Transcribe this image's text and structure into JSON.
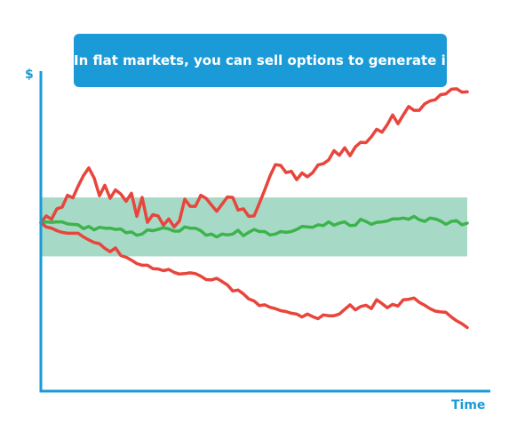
{
  "header": {
    "banner_text": "In flat markets, you can sell options to generate income."
  },
  "colors": {
    "banner": "#1a9bd7",
    "axis": "#1a9bd7",
    "band": "#a7d9c7",
    "up_down": "#e8453c",
    "flat": "#3cb44b"
  },
  "chart_data": {
    "type": "line",
    "title": "",
    "xlabel": "Time",
    "ylabel": "$",
    "xlim": [
      0,
      80
    ],
    "ylim": [
      -40,
      36
    ],
    "grid": false,
    "legend": "none",
    "band": {
      "from": -8,
      "to": 6
    },
    "x": [
      0,
      1,
      2,
      3,
      4,
      5,
      6,
      7,
      8,
      9,
      10,
      11,
      12,
      13,
      14,
      15,
      16,
      17,
      18,
      19,
      20,
      21,
      22,
      23,
      24,
      25,
      26,
      27,
      28,
      29,
      30,
      31,
      32,
      33,
      34,
      35,
      36,
      37,
      38,
      39,
      40,
      41,
      42,
      43,
      44,
      45,
      46,
      47,
      48,
      49,
      50,
      51,
      52,
      53,
      54,
      55,
      56,
      57,
      58,
      59,
      60,
      61,
      62,
      63,
      64,
      65,
      66,
      67,
      68,
      69,
      70,
      71,
      72,
      73,
      74,
      75,
      76,
      77,
      78,
      79,
      80
    ],
    "series": [
      {
        "values": [
          0,
          1.6,
          0.8,
          3.3,
          3.7,
          6.5,
          5.9,
          8.7,
          11.2,
          13.0,
          10.6,
          6.4,
          8.9,
          5.8,
          7.8,
          6.8,
          5.1,
          7.0,
          1.5,
          6.0,
          0.1,
          1.9,
          1.6,
          -0.6,
          0.9,
          -1.0,
          0.4,
          5.6,
          3.9,
          3.9,
          6.5,
          5.8,
          4.2,
          2.7,
          4.4,
          6.1,
          6.0,
          3.0,
          3.3,
          1.5,
          1.6,
          4.6,
          7.8,
          11.1,
          13.8,
          13.6,
          11.9,
          12.2,
          10.2,
          11.8,
          10.9,
          11.9,
          13.7,
          14.0,
          14.9,
          17.1,
          16.0,
          17.8,
          15.9,
          18.0,
          19.1,
          19.0,
          20.4,
          22.2,
          21.5,
          23.3,
          25.6,
          23.5,
          25.6,
          27.6,
          26.7,
          26.7,
          28.2,
          28.9,
          29.2,
          30.4,
          30.6,
          31.7,
          31.8,
          31.0,
          31.1
        ]
      },
      {
        "values": [
          0,
          0.2,
          0.1,
          0.2,
          0.2,
          -0.3,
          -0.4,
          -0.5,
          -1.4,
          -0.9,
          -1.7,
          -1.1,
          -1.3,
          -1.3,
          -1.6,
          -1.5,
          -2.4,
          -2.2,
          -3.0,
          -2.7,
          -1.7,
          -1.9,
          -1.6,
          -1.2,
          -1.5,
          -2.0,
          -2.0,
          -1.0,
          -1.3,
          -1.3,
          -1.9,
          -3.0,
          -2.7,
          -3.4,
          -2.7,
          -2.9,
          -2.7,
          -1.8,
          -3.1,
          -2.3,
          -1.6,
          -2.1,
          -2.1,
          -2.9,
          -2.7,
          -2.1,
          -2.3,
          -2.1,
          -1.6,
          -0.9,
          -1.0,
          -1.1,
          -0.5,
          -0.7,
          0.2,
          -0.6,
          -0.1,
          0.2,
          -0.7,
          -0.6,
          0.8,
          0.3,
          -0.4,
          0.1,
          0.2,
          0.4,
          0.9,
          0.9,
          1.1,
          0.8,
          1.5,
          0.7,
          0.3,
          1.1,
          0.9,
          0.4,
          -0.4,
          0.3,
          0.5,
          -0.5,
          -0.1
        ]
      },
      {
        "values": [
          0,
          -1.0,
          -1.3,
          -1.9,
          -2.3,
          -2.5,
          -2.5,
          -2.5,
          -3.4,
          -4.1,
          -4.7,
          -5.0,
          -6.1,
          -6.9,
          -6.0,
          -7.8,
          -8.2,
          -8.9,
          -9.7,
          -10.1,
          -10.1,
          -10.9,
          -11.0,
          -11.4,
          -11.1,
          -11.8,
          -12.2,
          -12.1,
          -11.9,
          -12.1,
          -12.7,
          -13.5,
          -13.6,
          -13.2,
          -14.0,
          -14.8,
          -16.2,
          -16.0,
          -16.9,
          -18.1,
          -18.6,
          -19.7,
          -19.5,
          -20.1,
          -20.4,
          -20.9,
          -21.1,
          -21.5,
          -21.7,
          -22.4,
          -21.7,
          -22.3,
          -22.8,
          -21.9,
          -22.1,
          -22.1,
          -21.7,
          -20.6,
          -19.5,
          -20.7,
          -19.9,
          -19.6,
          -20.4,
          -18.3,
          -19.2,
          -20.2,
          -19.4,
          -19.8,
          -18.3,
          -18.2,
          -17.9,
          -18.9,
          -19.6,
          -20.4,
          -21.0,
          -21.2,
          -21.3,
          -22.4,
          -23.3,
          -24.0,
          -24.9
        ]
      }
    ]
  }
}
